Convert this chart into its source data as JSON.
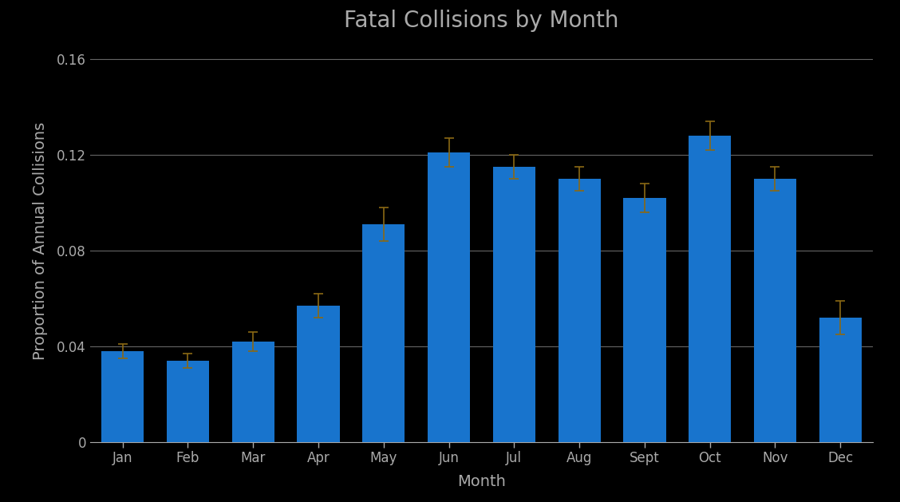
{
  "title": "Fatal Collisions by Month",
  "xlabel": "Month",
  "ylabel": "Proportion of Annual Collisions",
  "categories": [
    "Jan",
    "Feb",
    "Mar",
    "Apr",
    "May",
    "Jun",
    "Jul",
    "Aug",
    "Sept",
    "Oct",
    "Nov",
    "Dec"
  ],
  "values": [
    0.038,
    0.034,
    0.042,
    0.057,
    0.091,
    0.121,
    0.115,
    0.11,
    0.102,
    0.128,
    0.11,
    0.052
  ],
  "errors": [
    0.003,
    0.003,
    0.004,
    0.005,
    0.007,
    0.006,
    0.005,
    0.005,
    0.006,
    0.006,
    0.005,
    0.007
  ],
  "bar_color": "#1874CD",
  "error_color": "#8B6914",
  "background_color": "#000000",
  "text_color": "#aaaaaa",
  "grid_color": "#666666",
  "ylim": [
    0,
    0.168
  ],
  "yticks": [
    0,
    0.04,
    0.08,
    0.12,
    0.16
  ],
  "ytick_labels": [
    "0",
    "0.04",
    "0.08",
    "0.12",
    "0.16"
  ],
  "title_fontsize": 20,
  "label_fontsize": 14,
  "tick_fontsize": 12
}
